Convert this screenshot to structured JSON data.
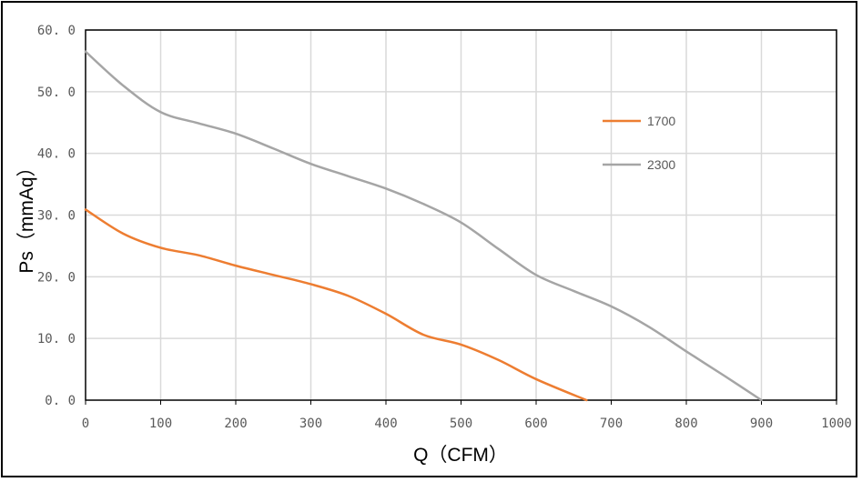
{
  "chart_data": {
    "type": "line",
    "title": "",
    "xlabel": "Q（CFM）",
    "ylabel": "Ps（mmAq）",
    "xlim": [
      0,
      1000
    ],
    "ylim": [
      0,
      60
    ],
    "xticks": [
      0,
      100,
      200,
      300,
      400,
      500,
      600,
      700,
      800,
      900,
      1000
    ],
    "yticks": [
      "0.0",
      "10.0",
      "20.0",
      "30.0",
      "40.0",
      "50.0",
      "60.0"
    ],
    "grid": true,
    "legend_position": "right",
    "series": [
      {
        "name": "1700",
        "color": "#ED7D31",
        "x": [
          0,
          50,
          100,
          150,
          200,
          250,
          300,
          350,
          400,
          450,
          500,
          550,
          600,
          667
        ],
        "y": [
          30.9,
          27.0,
          24.7,
          23.5,
          21.8,
          20.3,
          18.8,
          16.9,
          14.0,
          10.6,
          9.0,
          6.5,
          3.4,
          0.0
        ]
      },
      {
        "name": "2300",
        "color": "#A5A5A5",
        "x": [
          0,
          50,
          100,
          150,
          200,
          250,
          300,
          350,
          400,
          450,
          500,
          550,
          600,
          650,
          700,
          750,
          800,
          850,
          900
        ],
        "y": [
          56.5,
          51.0,
          46.7,
          44.9,
          43.2,
          40.8,
          38.3,
          36.3,
          34.3,
          31.8,
          28.8,
          24.5,
          20.3,
          17.7,
          15.2,
          11.9,
          7.9,
          4.0,
          0.0
        ]
      }
    ]
  }
}
